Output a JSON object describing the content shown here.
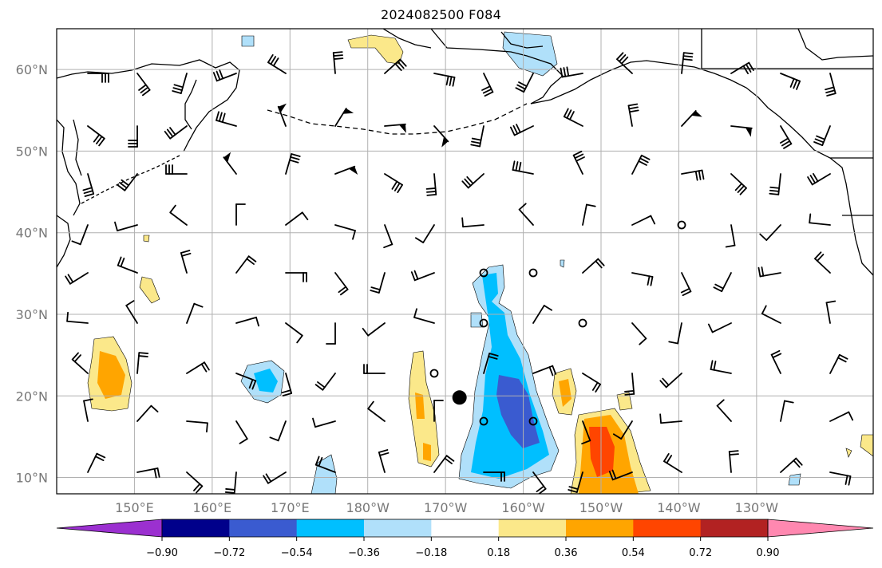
{
  "title": "2024082500 F084",
  "map": {
    "lon_range": [
      140,
      245
    ],
    "lat_range": [
      8,
      65
    ],
    "grid": true,
    "lat_labels": [
      "60°N",
      "50°N",
      "40°N",
      "30°N",
      "20°N",
      "10°N"
    ],
    "lon_labels": [
      "150°E",
      "160°E",
      "170°E",
      "180°W",
      "170°W",
      "160°W",
      "150°W",
      "140°W",
      "130°W"
    ],
    "storm_center": {
      "lon": 191.8,
      "lat": 19.8
    }
  },
  "colorbar": {
    "levels": [
      "−0.90",
      "−0.72",
      "−0.54",
      "−0.36",
      "−0.18",
      "0.18",
      "0.36",
      "0.54",
      "0.72",
      "0.90"
    ],
    "colors": [
      "#9b30d0",
      "#00008b",
      "#3a5bd0",
      "#00bfff",
      "#b0e0fa",
      "#ffffff",
      "#fbe88a",
      "#ffa500",
      "#ff4500",
      "#b22222",
      "#ff88b0"
    ]
  },
  "colors": {
    "grid": "#b0b0b0",
    "coast": "#000000",
    "tick_label": "#777777"
  }
}
